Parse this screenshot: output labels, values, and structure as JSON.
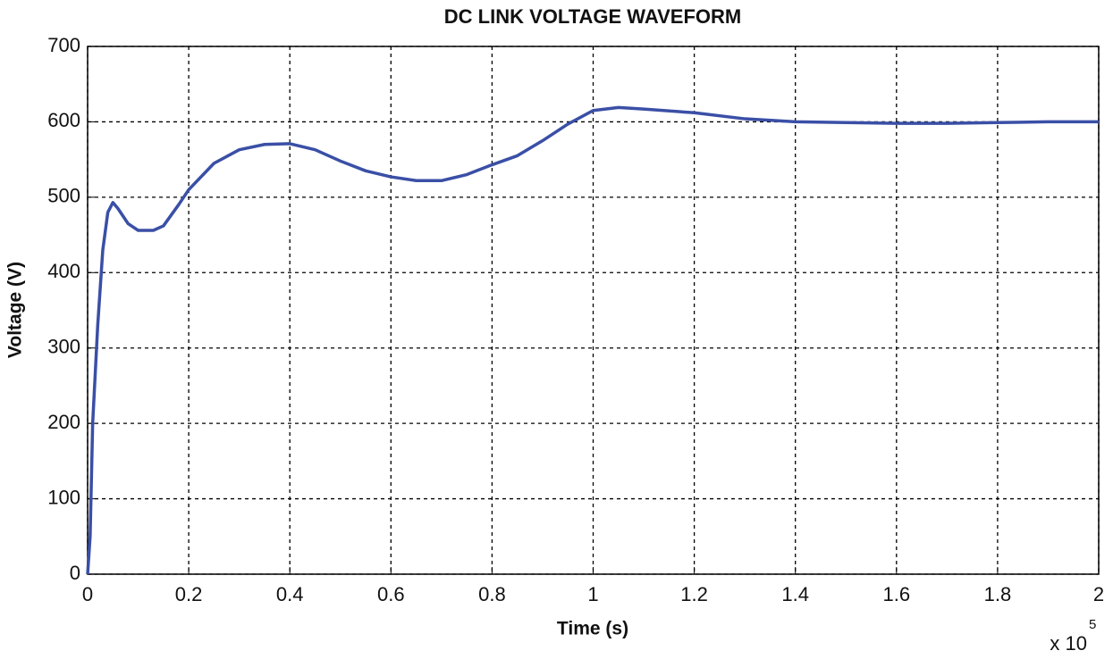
{
  "chart_data": {
    "type": "line",
    "title": "DC LINK VOLTAGE WAVEFORM",
    "x_label": "Time (s)",
    "y_label": "Voltage (V)",
    "x_multiplier": "x 10",
    "x_multiplier_exponent": "5",
    "x": [
      0,
      0.005,
      0.01,
      0.02,
      0.03,
      0.04,
      0.05,
      0.06,
      0.08,
      0.1,
      0.13,
      0.15,
      0.18,
      0.2,
      0.25,
      0.3,
      0.35,
      0.4,
      0.45,
      0.5,
      0.55,
      0.6,
      0.65,
      0.7,
      0.75,
      0.8,
      0.85,
      0.9,
      0.95,
      1.0,
      1.05,
      1.1,
      1.2,
      1.3,
      1.4,
      1.5,
      1.6,
      1.7,
      1.8,
      1.9,
      2.0
    ],
    "series": [
      {
        "name": "DC link voltage",
        "color": "#3a4fa6",
        "values": [
          0,
          50,
          200,
          330,
          430,
          480,
          493,
          485,
          465,
          456,
          456,
          462,
          490,
          510,
          545,
          563,
          570,
          571,
          563,
          548,
          535,
          527,
          522,
          522,
          530,
          543,
          555,
          575,
          597,
          615,
          619,
          617,
          612,
          604,
          600,
          599,
          598,
          598,
          599,
          600,
          600
        ]
      }
    ],
    "xlim": [
      0,
      2
    ],
    "ylim": [
      0,
      700
    ],
    "xticks": [
      0,
      0.2,
      0.4,
      0.6,
      0.8,
      1,
      1.2,
      1.4,
      1.6,
      1.8,
      2
    ],
    "yticks": [
      0,
      100,
      200,
      300,
      400,
      500,
      600,
      700
    ],
    "grid": true
  }
}
